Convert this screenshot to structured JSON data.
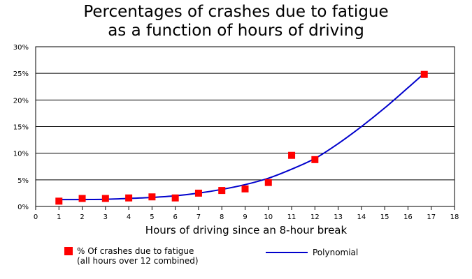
{
  "chart_data": {
    "type": "scatter",
    "title": [
      "Percentages of crashes due to fatigue",
      "as a function of hours of driving"
    ],
    "xlabel": "Hours of driving since an 8-hour break",
    "ylabel": "",
    "xlim": [
      0,
      18
    ],
    "ylim": [
      0,
      30
    ],
    "x_ticks": [
      "0",
      "1",
      "2",
      "3",
      "4",
      "5",
      "6",
      "7",
      "8",
      "9",
      "10",
      "11",
      "12",
      "13",
      "14",
      "15",
      "16",
      "17",
      "18"
    ],
    "y_ticks": [
      "0%",
      "5%",
      "10%",
      "15%",
      "20%",
      "25%",
      "30%"
    ],
    "grid": "horizontal",
    "legend_position": "bottom",
    "series": [
      {
        "name": "% Of crashes due to fatigue",
        "name_line2": "(all hours over 12 combined)",
        "kind": "marker",
        "color": "#ff0000",
        "x": [
          1,
          2,
          3,
          4,
          5,
          6,
          7,
          8,
          9,
          10,
          11,
          12,
          16.7
        ],
        "y": [
          1.0,
          1.5,
          1.5,
          1.6,
          1.8,
          1.6,
          2.5,
          3.0,
          3.3,
          4.5,
          9.6,
          8.8,
          24.8
        ]
      },
      {
        "name": "Polynomial",
        "kind": "line",
        "color": "#0000cc",
        "x": [
          1,
          2,
          3,
          4,
          5,
          6,
          7,
          8,
          9,
          10,
          11,
          12,
          13,
          14,
          15,
          16,
          16.7
        ],
        "y": [
          1.3,
          1.3,
          1.35,
          1.5,
          1.7,
          2.0,
          2.5,
          3.2,
          4.1,
          5.3,
          7.0,
          9.0,
          11.8,
          15.0,
          18.5,
          22.3,
          25.0
        ]
      }
    ]
  }
}
